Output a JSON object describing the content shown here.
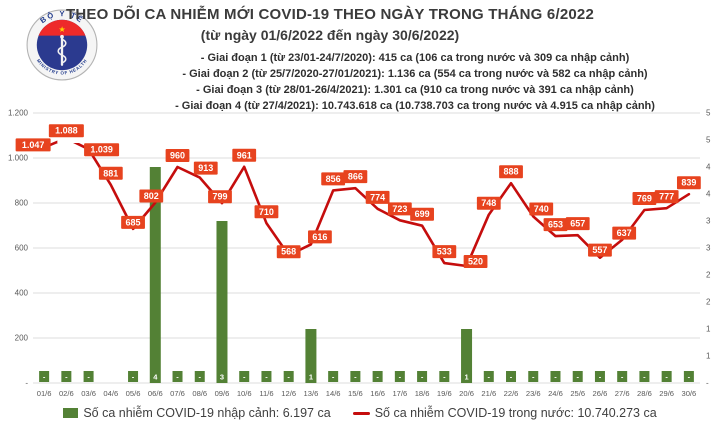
{
  "logo": {
    "top_text": "BỘ Y TẾ",
    "bottom_text": "MINISTRY OF HEALTH"
  },
  "header": {
    "title": "THEO DÕI CA NHIỄM MỚI COVID-19 THEO NGÀY TRONG THÁNG 6/2022",
    "subtitle": "(từ ngày 01/6/2022 đến ngày 30/6/2022)",
    "stages": [
      "- Giai đoạn 1 (từ 23/01-24/7/2020): 415 ca (106 ca trong nước và 309 ca nhập cảnh)",
      "- Giai đoạn 2 (từ 25/7/2020-27/01/2021): 1.136 ca (554 ca trong nước và 582 ca nhập cảnh)",
      "- Giai đoạn 3 (từ 28/01-26/4/2021): 1.301 ca (910 ca trong nước và 391 ca nhập cảnh)",
      "- Giai đoạn 4 (từ 27/4/2021): 10.743.618 ca (10.738.703 ca trong nước và 4.915 ca nhập cảnh)"
    ]
  },
  "chart_data": {
    "type": "combo",
    "categories": [
      "01/6",
      "02/6",
      "03/6",
      "04/6",
      "05/6",
      "06/6",
      "07/6",
      "08/6",
      "09/6",
      "10/6",
      "11/6",
      "12/6",
      "13/6",
      "14/6",
      "15/6",
      "16/6",
      "17/6",
      "18/6",
      "19/6",
      "20/6",
      "21/6",
      "22/6",
      "23/6",
      "24/6",
      "25/6",
      "26/6",
      "27/6",
      "28/6",
      "29/6",
      "30/6"
    ],
    "series": [
      {
        "name": "Số ca nhiễm COVID-19 nhập cảnh",
        "chart_type": "bar",
        "axis": "right",
        "values": [
          0,
          0,
          0,
          null,
          0,
          4,
          0,
          0,
          3,
          0,
          0,
          0,
          1,
          0,
          0,
          0,
          0,
          0,
          0,
          1,
          0,
          0,
          0,
          0,
          0,
          0,
          0,
          0,
          0,
          0
        ],
        "labels": [
          "-",
          "-",
          "-",
          null,
          "-",
          "4",
          "-",
          "-",
          "3",
          "-",
          "-",
          "-",
          "1",
          "-",
          "-",
          "-",
          "-",
          "-",
          "-",
          "1",
          "-",
          "-",
          "-",
          "-",
          "-",
          "-",
          "-",
          "-",
          "-",
          "-"
        ]
      },
      {
        "name": "Số ca nhiễm COVID-19 trong nước",
        "chart_type": "line",
        "axis": "left",
        "values": [
          1047,
          1088,
          1039,
          881,
          685,
          802,
          960,
          913,
          799,
          961,
          710,
          568,
          616,
          856,
          866,
          774,
          723,
          699,
          533,
          520,
          748,
          888,
          740,
          653,
          657,
          557,
          637,
          769,
          777,
          839
        ],
        "labels": [
          "1.047",
          "1.088",
          "1.039",
          "881",
          "685",
          "802",
          "960",
          "913",
          "799",
          "961",
          "710",
          "568",
          "616",
          "856",
          "866",
          "774",
          "723",
          "699",
          "533",
          "520",
          "748",
          "888",
          "740",
          "653",
          "657",
          "557",
          "637",
          "769",
          "777",
          "839"
        ]
      }
    ],
    "left_axis": {
      "min": 0,
      "max": 1200,
      "tick_labels_bottom_up": [
        "-",
        "200",
        "400",
        "600",
        "800",
        "1.000",
        "1.200"
      ]
    },
    "right_axis": {
      "min": 0,
      "max": 5,
      "tick_labels_bottom_up": [
        "-",
        "1",
        "1",
        "2",
        "2",
        "3",
        "3",
        "4",
        "4",
        "5",
        "5"
      ]
    },
    "grid": true,
    "legend_position": "bottom"
  },
  "legend": [
    {
      "marker": "bar",
      "label": "Số ca nhiễm COVID-19 nhập cảnh: 6.197 ca"
    },
    {
      "marker": "line",
      "label": "Số ca nhiễm COVID-19 trong nước: 10.740.273 ca"
    }
  ],
  "colors": {
    "bar": "#538135",
    "line": "#c50d0d",
    "label_bg": "#e7431f",
    "label_text": "#ffffff",
    "grid": "#dcdcdc",
    "axis_text": "#595959",
    "title_text": "#3b3b3b"
  }
}
